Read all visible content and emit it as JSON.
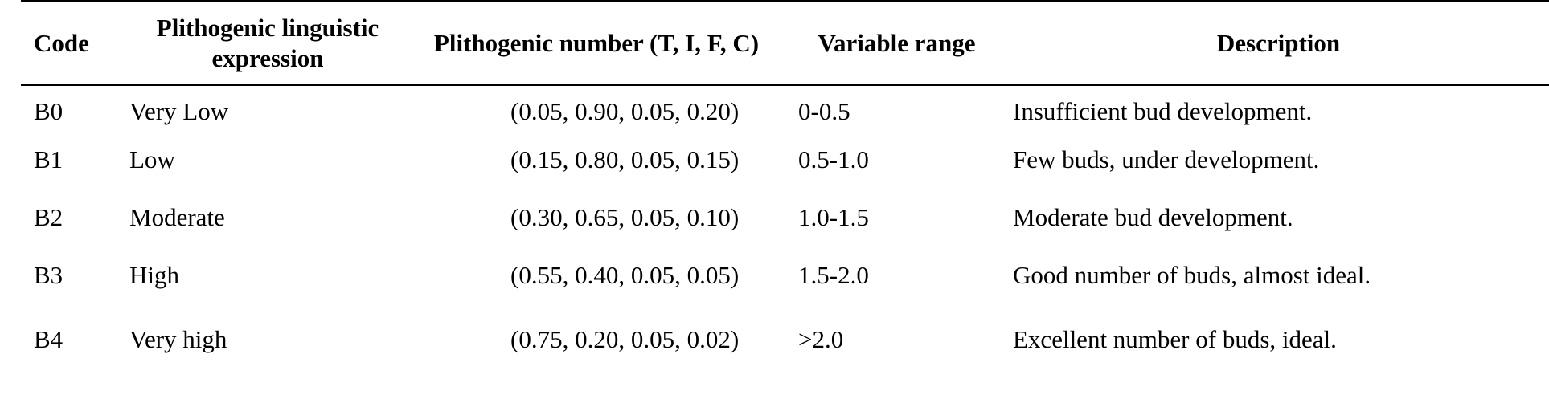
{
  "table": {
    "headers": [
      "Code",
      "Plithogenic linguistic expression",
      "Plithogenic number (T, I, F, C)",
      "Variable range",
      "Description"
    ],
    "rows": [
      [
        "B0",
        "Very Low",
        "(0.05, 0.90, 0.05, 0.20)",
        "0-0.5",
        "Insufficient bud development."
      ],
      [
        "B1",
        "Low",
        "(0.15, 0.80, 0.05, 0.15)",
        "0.5-1.0",
        "Few buds, under development."
      ],
      [
        "B2",
        "Moderate",
        "(0.30, 0.65, 0.05, 0.10)",
        "1.0-1.5",
        "Moderate bud development."
      ],
      [
        "B3",
        "High",
        "(0.55, 0.40, 0.05, 0.05)",
        "1.5-2.0",
        "Good number of buds, almost ideal."
      ],
      [
        "B4",
        "Very high",
        "(0.75, 0.20, 0.05, 0.02)",
        ">2.0",
        "Excellent number of buds, ideal."
      ]
    ]
  }
}
